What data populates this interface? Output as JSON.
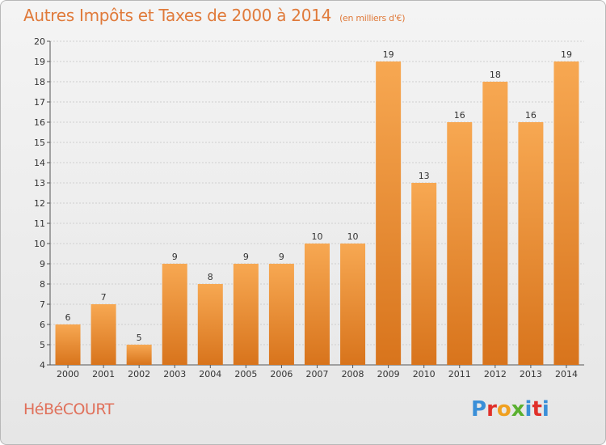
{
  "header": {
    "title": "Autres Impôts et Taxes de 2000 à 2014",
    "subtitle": "(en milliers d'€)"
  },
  "footer": {
    "commune": "HéBéCOURT",
    "logo_letters": [
      "P",
      "r",
      "o",
      "x",
      "i",
      "t",
      "i"
    ]
  },
  "colors": {
    "bar_top": "#f7a852",
    "bar_bottom": "#d8741c",
    "title": "#e07a3a",
    "grid": "#cfcfcf"
  },
  "chart_data": {
    "type": "bar",
    "title": "Autres Impôts et Taxes de 2000 à 2014",
    "subtitle": "(en milliers d'€)",
    "xlabel": "",
    "ylabel": "",
    "categories": [
      "2000",
      "2001",
      "2002",
      "2003",
      "2004",
      "2005",
      "2006",
      "2007",
      "2008",
      "2009",
      "2010",
      "2011",
      "2012",
      "2013",
      "2014"
    ],
    "values": [
      6,
      7,
      5,
      9,
      8,
      9,
      9,
      10,
      10,
      19,
      13,
      16,
      18,
      16,
      19
    ],
    "ylim": [
      4,
      20
    ],
    "yticks": [
      4,
      5,
      6,
      7,
      8,
      9,
      10,
      11,
      12,
      13,
      14,
      15,
      16,
      17,
      18,
      19,
      20
    ],
    "grid": true,
    "legend": "none"
  }
}
